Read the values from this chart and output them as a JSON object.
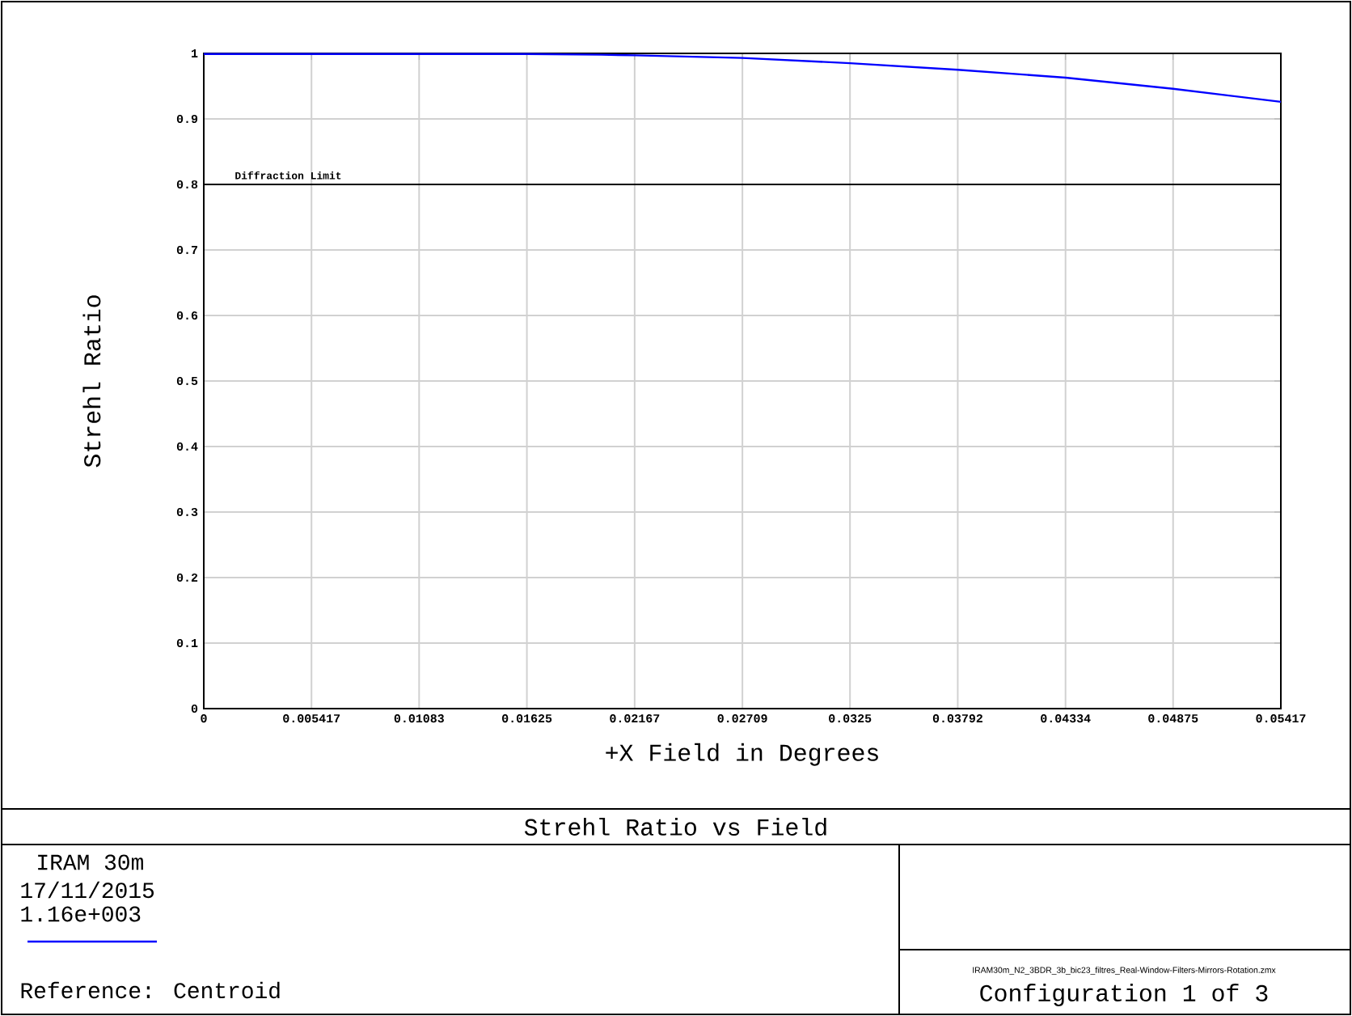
{
  "chart_data": {
    "type": "line",
    "title": "Strehl Ratio vs Field",
    "xlabel": "+X Field in Degrees",
    "ylabel": "Strehl Ratio",
    "x": [
      0,
      0.005417,
      0.01083,
      0.01625,
      0.02,
      0.02167,
      0.02709,
      0.0325,
      0.03792,
      0.04334,
      0.04875,
      0.05417
    ],
    "series": [
      {
        "color": "#0000ff",
        "values": [
          0.999,
          0.999,
          0.999,
          0.999,
          0.998,
          0.997,
          0.993,
          0.985,
          0.975,
          0.963,
          0.946,
          0.926
        ]
      }
    ],
    "xlim": [
      0,
      0.05417
    ],
    "ylim": [
      0,
      1
    ],
    "xticks": [
      0,
      0.005417,
      0.01083,
      0.01625,
      0.02167,
      0.02709,
      0.0325,
      0.03792,
      0.04334,
      0.04875,
      0.05417
    ],
    "yticks": [
      0,
      0.1,
      0.2,
      0.3,
      0.4,
      0.5,
      0.6,
      0.7,
      0.8,
      0.9,
      1
    ],
    "ref_lines": [
      {
        "axis": "y",
        "value": 0.8,
        "label": "Diffraction Limit",
        "color": "#000000"
      }
    ],
    "grid": true,
    "marker": "none",
    "line_style": "solid",
    "annotations": [
      "IRAM 30m",
      "17/11/2015",
      "1.16e+003",
      "Reference: Centroid",
      "IRAM30m_N2_3BDR_3b_bic23_filtres_Real-Window-Filters-Mirrors-Rotation.zmx",
      "Configuration 1 of 3"
    ]
  }
}
